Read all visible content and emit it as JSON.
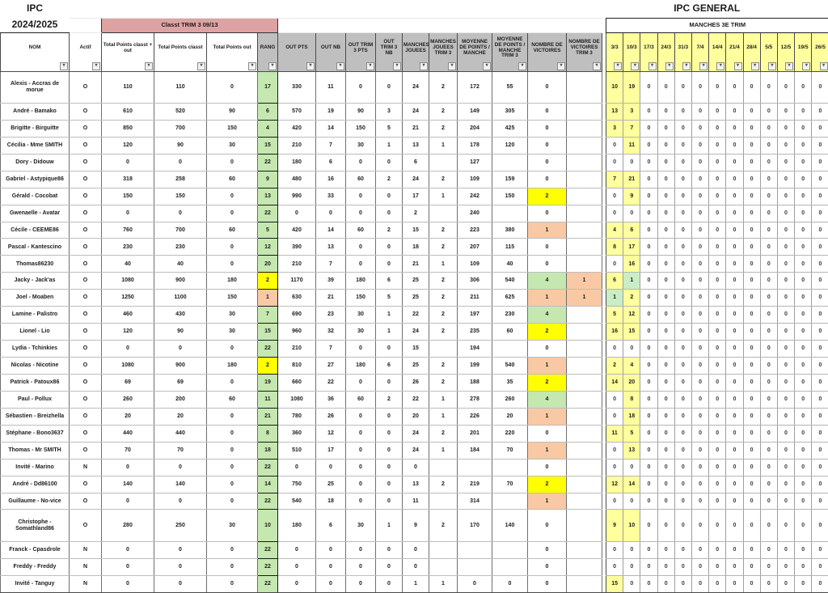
{
  "titles": {
    "app_left_line1": "IPC",
    "app_left_line2": "2024/2025",
    "right_title": "IPC GENERAL",
    "classt_band": "Classt TRIM 3 09/13",
    "manches_band": "MANCHES 3E TRIM"
  },
  "palette": {
    "pink_band": "#dda3a3",
    "gray_header": "#bfbfbf",
    "yellow_header": "#ffff9d",
    "yellow_bright": "#ffff00",
    "yellow_light": "#ffff9d",
    "green_rank": "#c5e7b0",
    "green_win": "#c9edc5",
    "orange": "#f8c9a4"
  },
  "icons": {
    "filter": "▾"
  },
  "columns": [
    {
      "id": "nom",
      "label": "NOM"
    },
    {
      "id": "actif",
      "label": "Actif"
    },
    {
      "id": "tp_classt_out",
      "label": "Total Points classt + out"
    },
    {
      "id": "tp_classt",
      "label": "Total Points classt"
    },
    {
      "id": "tp_out",
      "label": "Total Points out"
    },
    {
      "id": "rang",
      "label": "RANG"
    },
    {
      "id": "out_pts",
      "label": "OUT PTS"
    },
    {
      "id": "out_nb",
      "label": "OUT NB"
    },
    {
      "id": "out_t3_pts",
      "label": "OUT TRIM 3 PTS"
    },
    {
      "id": "out_t3_nb",
      "label": "OUT TRIM 3 NB"
    },
    {
      "id": "manches",
      "label": "MANCHES JOUEES"
    },
    {
      "id": "manches_t3",
      "label": "MANCHES JOUEES TRIM 3"
    },
    {
      "id": "moy",
      "label": "MOYENNE DE POINTS / MANCHE"
    },
    {
      "id": "moy_t3",
      "label": "MOYENNE DE POINTS / MANCHE TRIM 3"
    },
    {
      "id": "vic",
      "label": "NOMBRE DE VICTOIRES"
    },
    {
      "id": "vic_t3",
      "label": "NOMBRE DE VICTOIRES TRIM 3"
    }
  ],
  "date_columns": [
    "3/3",
    "10/3",
    "17/3",
    "24/3",
    "31/3",
    "7/4",
    "14/4",
    "21/4",
    "28/4",
    "5/5",
    "12/5",
    "19/5",
    "26/5"
  ],
  "rows": [
    {
      "name": "Alexis - Accras de morue",
      "actif": "O",
      "tp_classt_out": 110,
      "tp_classt": 110,
      "tp_out": 0,
      "rang": 17,
      "out_pts": 330,
      "out_nb": 11,
      "out_t3_pts": 0,
      "out_t3_nb": 0,
      "manches": 24,
      "manches_t3": 2,
      "moy": 172,
      "moy_t3": 55,
      "vic": 0,
      "vic_t3": "",
      "dates": [
        10,
        19,
        0,
        0,
        0,
        0,
        0,
        0,
        0,
        0,
        0,
        0,
        0
      ]
    },
    {
      "name": "André - Bamako",
      "actif": "O",
      "tp_classt_out": 610,
      "tp_classt": 520,
      "tp_out": 90,
      "rang": 6,
      "out_pts": 570,
      "out_nb": 19,
      "out_t3_pts": 90,
      "out_t3_nb": 3,
      "manches": 24,
      "manches_t3": 2,
      "moy": 149,
      "moy_t3": 305,
      "vic": 0,
      "vic_t3": "",
      "dates": [
        13,
        3,
        0,
        0,
        0,
        0,
        0,
        0,
        0,
        0,
        0,
        0,
        0
      ]
    },
    {
      "name": "Brigitte - Birguitte",
      "actif": "O",
      "tp_classt_out": 850,
      "tp_classt": 700,
      "tp_out": 150,
      "rang": 4,
      "out_pts": 420,
      "out_nb": 14,
      "out_t3_pts": 150,
      "out_t3_nb": 5,
      "manches": 21,
      "manches_t3": 2,
      "moy": 204,
      "moy_t3": 425,
      "vic": 0,
      "vic_t3": "",
      "dates": [
        3,
        7,
        0,
        0,
        0,
        0,
        0,
        0,
        0,
        0,
        0,
        0,
        0
      ]
    },
    {
      "name": "Cécilia - Mme SMITH",
      "actif": "O",
      "tp_classt_out": 120,
      "tp_classt": 90,
      "tp_out": 30,
      "rang": 15,
      "out_pts": 210,
      "out_nb": 7,
      "out_t3_pts": 30,
      "out_t3_nb": 1,
      "manches": 13,
      "manches_t3": 1,
      "moy": 178,
      "moy_t3": 120,
      "vic": 0,
      "vic_t3": "",
      "dates": [
        0,
        11,
        0,
        0,
        0,
        0,
        0,
        0,
        0,
        0,
        0,
        0,
        0
      ]
    },
    {
      "name": "Dory - Didouw",
      "actif": "O",
      "tp_classt_out": 0,
      "tp_classt": 0,
      "tp_out": 0,
      "rang": 22,
      "out_pts": 180,
      "out_nb": 6,
      "out_t3_pts": 0,
      "out_t3_nb": 0,
      "manches": 6,
      "manches_t3": "",
      "moy": 127,
      "moy_t3": "",
      "vic": 0,
      "vic_t3": "",
      "dates": [
        0,
        0,
        0,
        0,
        0,
        0,
        0,
        0,
        0,
        0,
        0,
        0,
        0
      ]
    },
    {
      "name": "Gabriel - Astypique86",
      "actif": "O",
      "tp_classt_out": 318,
      "tp_classt": 258,
      "tp_out": 60,
      "rang": 9,
      "out_pts": 480,
      "out_nb": 16,
      "out_t3_pts": 60,
      "out_t3_nb": 2,
      "manches": 24,
      "manches_t3": 2,
      "moy": 109,
      "moy_t3": 159,
      "vic": 0,
      "vic_t3": "",
      "dates": [
        7,
        21,
        0,
        0,
        0,
        0,
        0,
        0,
        0,
        0,
        0,
        0,
        0
      ]
    },
    {
      "name": "Gérald - Cocobat",
      "actif": "O",
      "tp_classt_out": 150,
      "tp_classt": 150,
      "tp_out": 0,
      "rang": 13,
      "out_pts": 990,
      "out_nb": 33,
      "out_t3_pts": 0,
      "out_t3_nb": 0,
      "manches": 17,
      "manches_t3": 1,
      "moy": 242,
      "moy_t3": 150,
      "vic": 2,
      "vic_t3": "",
      "dates": [
        0,
        9,
        0,
        0,
        0,
        0,
        0,
        0,
        0,
        0,
        0,
        0,
        0
      ]
    },
    {
      "name": "Gwenaelle - Avatar",
      "actif": "O",
      "tp_classt_out": 0,
      "tp_classt": 0,
      "tp_out": 0,
      "rang": 22,
      "out_pts": 0,
      "out_nb": 0,
      "out_t3_pts": 0,
      "out_t3_nb": 0,
      "manches": 2,
      "manches_t3": "",
      "moy": 240,
      "moy_t3": "",
      "vic": 0,
      "vic_t3": "",
      "dates": [
        0,
        0,
        0,
        0,
        0,
        0,
        0,
        0,
        0,
        0,
        0,
        0,
        0
      ]
    },
    {
      "name": "Cécile - CEEME86",
      "actif": "O",
      "tp_classt_out": 760,
      "tp_classt": 700,
      "tp_out": 60,
      "rang": 5,
      "out_pts": 420,
      "out_nb": 14,
      "out_t3_pts": 60,
      "out_t3_nb": 2,
      "manches": 15,
      "manches_t3": 2,
      "moy": 223,
      "moy_t3": 380,
      "vic": 1,
      "vic_t3": "",
      "dates": [
        4,
        6,
        0,
        0,
        0,
        0,
        0,
        0,
        0,
        0,
        0,
        0,
        0
      ]
    },
    {
      "name": "Pascal - Kantescino",
      "actif": "O",
      "tp_classt_out": 230,
      "tp_classt": 230,
      "tp_out": 0,
      "rang": 12,
      "out_pts": 390,
      "out_nb": 13,
      "out_t3_pts": 0,
      "out_t3_nb": 0,
      "manches": 18,
      "manches_t3": 2,
      "moy": 207,
      "moy_t3": 115,
      "vic": 0,
      "vic_t3": "",
      "dates": [
        8,
        17,
        0,
        0,
        0,
        0,
        0,
        0,
        0,
        0,
        0,
        0,
        0
      ]
    },
    {
      "name": "Thomas86230",
      "actif": "O",
      "tp_classt_out": 40,
      "tp_classt": 40,
      "tp_out": 0,
      "rang": 20,
      "out_pts": 210,
      "out_nb": 7,
      "out_t3_pts": 0,
      "out_t3_nb": 0,
      "manches": 21,
      "manches_t3": 1,
      "moy": 109,
      "moy_t3": 40,
      "vic": 0,
      "vic_t3": "",
      "dates": [
        0,
        16,
        0,
        0,
        0,
        0,
        0,
        0,
        0,
        0,
        0,
        0,
        0
      ]
    },
    {
      "name": "Jacky - Jack'as",
      "actif": "O",
      "tp_classt_out": 1080,
      "tp_classt": 900,
      "tp_out": 180,
      "rang": 2,
      "out_pts": 1170,
      "out_nb": 39,
      "out_t3_pts": 180,
      "out_t3_nb": 6,
      "manches": 25,
      "manches_t3": 2,
      "moy": 306,
      "moy_t3": 540,
      "vic": 4,
      "vic_t3": 1,
      "dates": [
        6,
        1,
        0,
        0,
        0,
        0,
        0,
        0,
        0,
        0,
        0,
        0,
        0
      ]
    },
    {
      "name": "Joel - Moaben",
      "actif": "O",
      "tp_classt_out": 1250,
      "tp_classt": 1100,
      "tp_out": 150,
      "rang": 1,
      "out_pts": 630,
      "out_nb": 21,
      "out_t3_pts": 150,
      "out_t3_nb": 5,
      "manches": 25,
      "manches_t3": 2,
      "moy": 211,
      "moy_t3": 625,
      "vic": 1,
      "vic_t3": 1,
      "dates": [
        1,
        2,
        0,
        0,
        0,
        0,
        0,
        0,
        0,
        0,
        0,
        0,
        0
      ]
    },
    {
      "name": "Lamine - Palistro",
      "actif": "O",
      "tp_classt_out": 460,
      "tp_classt": 430,
      "tp_out": 30,
      "rang": 7,
      "out_pts": 690,
      "out_nb": 23,
      "out_t3_pts": 30,
      "out_t3_nb": 1,
      "manches": 22,
      "manches_t3": 2,
      "moy": 197,
      "moy_t3": 230,
      "vic": 4,
      "vic_t3": "",
      "dates": [
        5,
        12,
        0,
        0,
        0,
        0,
        0,
        0,
        0,
        0,
        0,
        0,
        0
      ]
    },
    {
      "name": "Lionel - Lio",
      "actif": "O",
      "tp_classt_out": 120,
      "tp_classt": 90,
      "tp_out": 30,
      "rang": 15,
      "out_pts": 960,
      "out_nb": 32,
      "out_t3_pts": 30,
      "out_t3_nb": 1,
      "manches": 24,
      "manches_t3": 2,
      "moy": 235,
      "moy_t3": 60,
      "vic": 2,
      "vic_t3": "",
      "dates": [
        16,
        15,
        0,
        0,
        0,
        0,
        0,
        0,
        0,
        0,
        0,
        0,
        0
      ]
    },
    {
      "name": "Lydia - Tchinkies",
      "actif": "O",
      "tp_classt_out": 0,
      "tp_classt": 0,
      "tp_out": 0,
      "rang": 22,
      "out_pts": 210,
      "out_nb": 7,
      "out_t3_pts": 0,
      "out_t3_nb": 0,
      "manches": 15,
      "manches_t3": "",
      "moy": 194,
      "moy_t3": "",
      "vic": 0,
      "vic_t3": "",
      "dates": [
        0,
        0,
        0,
        0,
        0,
        0,
        0,
        0,
        0,
        0,
        0,
        0,
        0
      ]
    },
    {
      "name": "Nicolas - Nicotine",
      "actif": "O",
      "tp_classt_out": 1080,
      "tp_classt": 900,
      "tp_out": 180,
      "rang": 2,
      "out_pts": 810,
      "out_nb": 27,
      "out_t3_pts": 180,
      "out_t3_nb": 6,
      "manches": 25,
      "manches_t3": 2,
      "moy": 199,
      "moy_t3": 540,
      "vic": 1,
      "vic_t3": "",
      "dates": [
        2,
        4,
        0,
        0,
        0,
        0,
        0,
        0,
        0,
        0,
        0,
        0,
        0
      ]
    },
    {
      "name": "Patrick - Patoux86",
      "actif": "O",
      "tp_classt_out": 69,
      "tp_classt": 69,
      "tp_out": 0,
      "rang": 19,
      "out_pts": 660,
      "out_nb": 22,
      "out_t3_pts": 0,
      "out_t3_nb": 0,
      "manches": 26,
      "manches_t3": 2,
      "moy": 188,
      "moy_t3": 35,
      "vic": 2,
      "vic_t3": "",
      "dates": [
        14,
        20,
        0,
        0,
        0,
        0,
        0,
        0,
        0,
        0,
        0,
        0,
        0
      ]
    },
    {
      "name": "Paul - Pollux",
      "actif": "O",
      "tp_classt_out": 260,
      "tp_classt": 200,
      "tp_out": 60,
      "rang": 11,
      "out_pts": 1080,
      "out_nb": 36,
      "out_t3_pts": 60,
      "out_t3_nb": 2,
      "manches": 22,
      "manches_t3": 1,
      "moy": 278,
      "moy_t3": 260,
      "vic": 4,
      "vic_t3": "",
      "dates": [
        0,
        8,
        0,
        0,
        0,
        0,
        0,
        0,
        0,
        0,
        0,
        0,
        0
      ]
    },
    {
      "name": "Sébastien - Breizhella",
      "actif": "O",
      "tp_classt_out": 20,
      "tp_classt": 20,
      "tp_out": 0,
      "rang": 21,
      "out_pts": 780,
      "out_nb": 26,
      "out_t3_pts": 0,
      "out_t3_nb": 0,
      "manches": 20,
      "manches_t3": 1,
      "moy": 226,
      "moy_t3": 20,
      "vic": 1,
      "vic_t3": "",
      "dates": [
        0,
        18,
        0,
        0,
        0,
        0,
        0,
        0,
        0,
        0,
        0,
        0,
        0
      ]
    },
    {
      "name": "Stéphane - Bono3637",
      "actif": "O",
      "tp_classt_out": 440,
      "tp_classt": 440,
      "tp_out": 0,
      "rang": 8,
      "out_pts": 360,
      "out_nb": 12,
      "out_t3_pts": 0,
      "out_t3_nb": 0,
      "manches": 24,
      "manches_t3": 2,
      "moy": 201,
      "moy_t3": 220,
      "vic": 0,
      "vic_t3": "",
      "dates": [
        11,
        5,
        0,
        0,
        0,
        0,
        0,
        0,
        0,
        0,
        0,
        0,
        0
      ]
    },
    {
      "name": "Thomas - Mr SMITH",
      "actif": "O",
      "tp_classt_out": 70,
      "tp_classt": 70,
      "tp_out": 0,
      "rang": 18,
      "out_pts": 510,
      "out_nb": 17,
      "out_t3_pts": 0,
      "out_t3_nb": 0,
      "manches": 24,
      "manches_t3": 1,
      "moy": 184,
      "moy_t3": 70,
      "vic": 1,
      "vic_t3": "",
      "dates": [
        0,
        13,
        0,
        0,
        0,
        0,
        0,
        0,
        0,
        0,
        0,
        0,
        0
      ]
    },
    {
      "name": "Invité - Marino",
      "actif": "N",
      "tp_classt_out": 0,
      "tp_classt": 0,
      "tp_out": 0,
      "rang": 22,
      "out_pts": 0,
      "out_nb": 0,
      "out_t3_pts": 0,
      "out_t3_nb": 0,
      "manches": 0,
      "manches_t3": "",
      "moy": "",
      "moy_t3": "",
      "vic": 0,
      "vic_t3": "",
      "dates": [
        0,
        0,
        0,
        0,
        0,
        0,
        0,
        0,
        0,
        0,
        0,
        0,
        0
      ]
    },
    {
      "name": "André - Dd86100",
      "actif": "O",
      "tp_classt_out": 140,
      "tp_classt": 140,
      "tp_out": 0,
      "rang": 14,
      "out_pts": 750,
      "out_nb": 25,
      "out_t3_pts": 0,
      "out_t3_nb": 0,
      "manches": 13,
      "manches_t3": 2,
      "moy": 219,
      "moy_t3": 70,
      "vic": 2,
      "vic_t3": "",
      "dates": [
        12,
        14,
        0,
        0,
        0,
        0,
        0,
        0,
        0,
        0,
        0,
        0,
        0
      ]
    },
    {
      "name": "Guillaume - No-vice",
      "actif": "O",
      "tp_classt_out": 0,
      "tp_classt": 0,
      "tp_out": 0,
      "rang": 22,
      "out_pts": 540,
      "out_nb": 18,
      "out_t3_pts": 0,
      "out_t3_nb": 0,
      "manches": 11,
      "manches_t3": "",
      "moy": 314,
      "moy_t3": "",
      "vic": 1,
      "vic_t3": "",
      "dates": [
        0,
        0,
        0,
        0,
        0,
        0,
        0,
        0,
        0,
        0,
        0,
        0,
        0
      ]
    },
    {
      "name": "Christophe - Somathland86",
      "actif": "O",
      "tp_classt_out": 280,
      "tp_classt": 250,
      "tp_out": 30,
      "rang": 10,
      "out_pts": 180,
      "out_nb": 6,
      "out_t3_pts": 30,
      "out_t3_nb": 1,
      "manches": 9,
      "manches_t3": 2,
      "moy": 170,
      "moy_t3": 140,
      "vic": 0,
      "vic_t3": "",
      "dates": [
        9,
        10,
        0,
        0,
        0,
        0,
        0,
        0,
        0,
        0,
        0,
        0,
        0
      ]
    },
    {
      "name": "Franck - Cpasdrole",
      "actif": "N",
      "tp_classt_out": 0,
      "tp_classt": 0,
      "tp_out": 0,
      "rang": 22,
      "out_pts": 0,
      "out_nb": 0,
      "out_t3_pts": 0,
      "out_t3_nb": 0,
      "manches": 0,
      "manches_t3": "",
      "moy": "",
      "moy_t3": "",
      "vic": 0,
      "vic_t3": "",
      "dates": [
        0,
        0,
        0,
        0,
        0,
        0,
        0,
        0,
        0,
        0,
        0,
        0,
        0
      ]
    },
    {
      "name": "Freddy - Freddy",
      "actif": "N",
      "tp_classt_out": 0,
      "tp_classt": 0,
      "tp_out": 0,
      "rang": 22,
      "out_pts": 0,
      "out_nb": 0,
      "out_t3_pts": 0,
      "out_t3_nb": 0,
      "manches": 0,
      "manches_t3": "",
      "moy": "",
      "moy_t3": "",
      "vic": 0,
      "vic_t3": "",
      "dates": [
        0,
        0,
        0,
        0,
        0,
        0,
        0,
        0,
        0,
        0,
        0,
        0,
        0
      ]
    },
    {
      "name": "Invité - Tanguy",
      "actif": "N",
      "tp_classt_out": 0,
      "tp_classt": 0,
      "tp_out": 0,
      "rang": 22,
      "out_pts": 0,
      "out_nb": 0,
      "out_t3_pts": 0,
      "out_t3_nb": 0,
      "manches": 1,
      "manches_t3": 1,
      "moy": 0,
      "moy_t3": 0,
      "vic": 0,
      "vic_t3": "",
      "dates": [
        15,
        0,
        0,
        0,
        0,
        0,
        0,
        0,
        0,
        0,
        0,
        0,
        0
      ]
    }
  ]
}
